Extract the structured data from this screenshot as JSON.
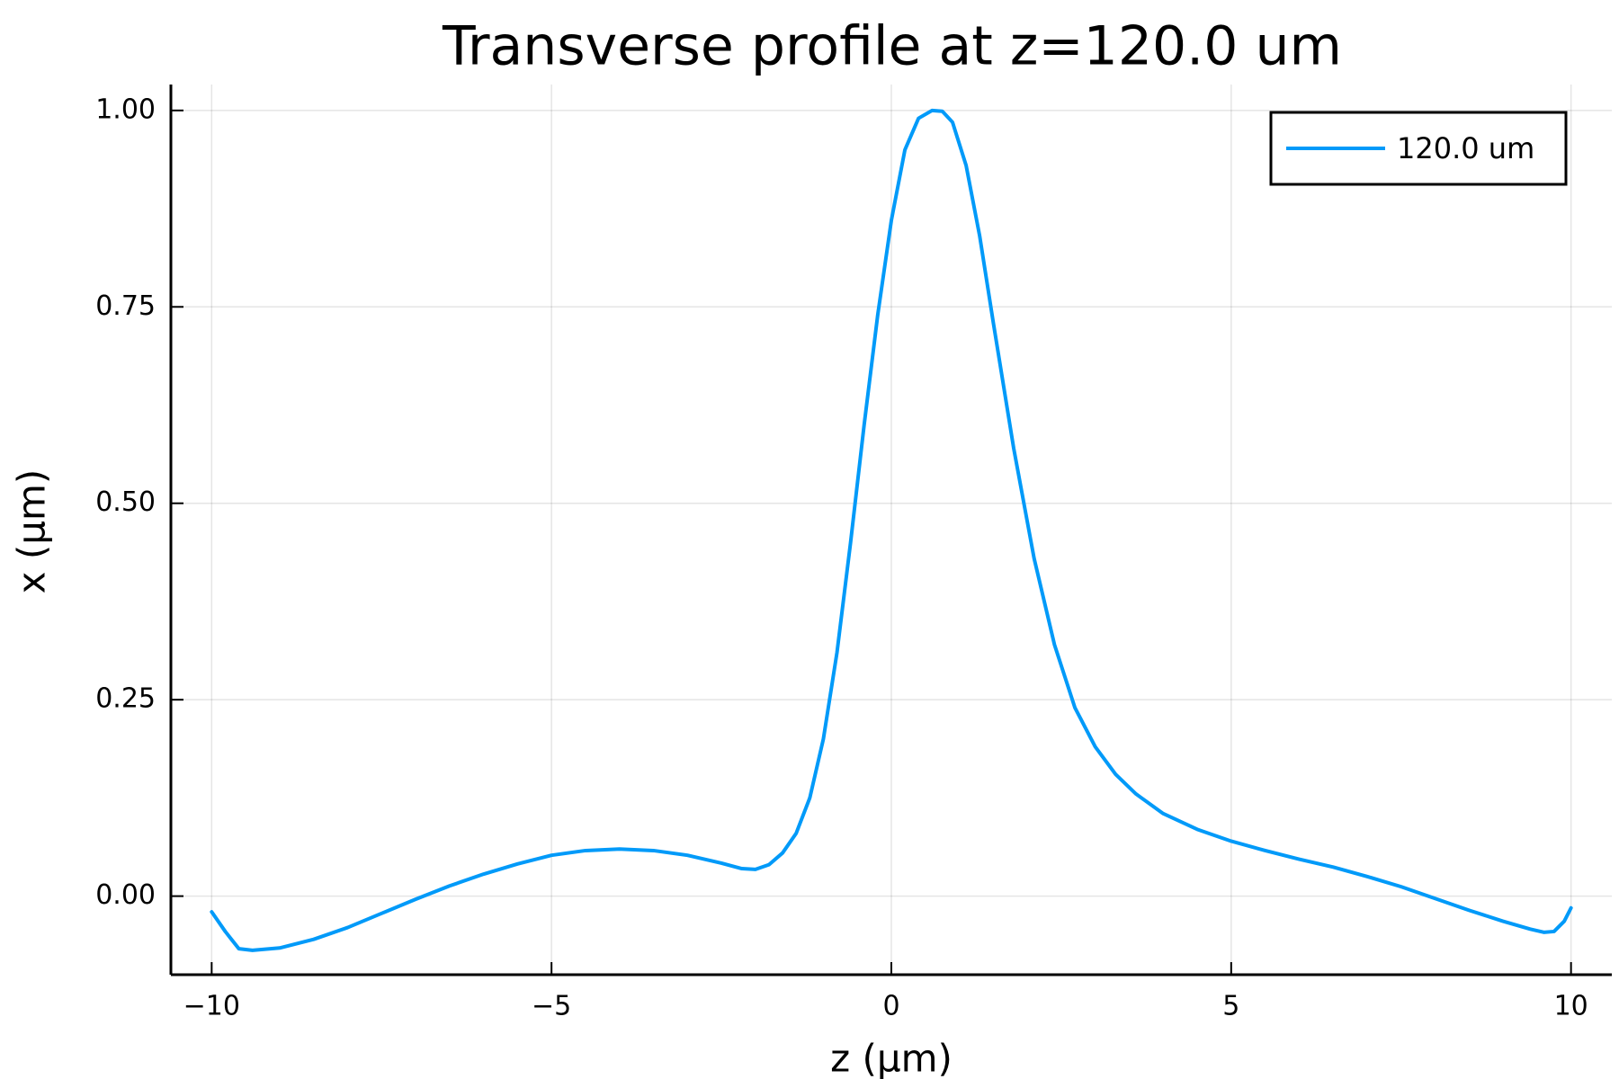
{
  "chart_data": {
    "type": "line",
    "title": "Transverse profile at z=120.0 um",
    "xlabel": "z (μm)",
    "ylabel": "x (μm)",
    "xlim": [
      -10.6,
      10.6
    ],
    "ylim": [
      -0.1,
      1.033
    ],
    "grid": true,
    "legend_position": "top-right",
    "x_ticks": [
      {
        "value": -10,
        "label": "−10"
      },
      {
        "value": -5,
        "label": "−5"
      },
      {
        "value": 0,
        "label": "0"
      },
      {
        "value": 5,
        "label": "5"
      },
      {
        "value": 10,
        "label": "10"
      }
    ],
    "y_ticks": [
      {
        "value": 0.0,
        "label": "0.00"
      },
      {
        "value": 0.25,
        "label": "0.25"
      },
      {
        "value": 0.5,
        "label": "0.50"
      },
      {
        "value": 0.75,
        "label": "0.75"
      },
      {
        "value": 1.0,
        "label": "1.00"
      }
    ],
    "series": [
      {
        "name": "120.0 um",
        "color": "#009af9",
        "x": [
          -10.0,
          -9.8,
          -9.6,
          -9.4,
          -9.0,
          -8.5,
          -8.0,
          -7.5,
          -7.0,
          -6.5,
          -6.0,
          -5.5,
          -5.0,
          -4.5,
          -4.0,
          -3.5,
          -3.0,
          -2.5,
          -2.2,
          -2.0,
          -1.8,
          -1.6,
          -1.4,
          -1.2,
          -1.0,
          -0.8,
          -0.6,
          -0.4,
          -0.2,
          0.0,
          0.2,
          0.4,
          0.6,
          0.75,
          0.9,
          1.1,
          1.3,
          1.5,
          1.8,
          2.1,
          2.4,
          2.7,
          3.0,
          3.3,
          3.6,
          4.0,
          4.5,
          5.0,
          5.5,
          6.0,
          6.5,
          7.0,
          7.5,
          8.0,
          8.5,
          9.0,
          9.4,
          9.6,
          9.75,
          9.9,
          10.0
        ],
        "values": [
          -0.02,
          -0.045,
          -0.067,
          -0.069,
          -0.066,
          -0.055,
          -0.04,
          -0.022,
          -0.004,
          0.013,
          0.028,
          0.041,
          0.052,
          0.058,
          0.06,
          0.058,
          0.052,
          0.042,
          0.035,
          0.034,
          0.04,
          0.055,
          0.08,
          0.125,
          0.2,
          0.31,
          0.45,
          0.6,
          0.74,
          0.86,
          0.95,
          0.99,
          1.0,
          0.999,
          0.985,
          0.93,
          0.84,
          0.73,
          0.57,
          0.43,
          0.32,
          0.24,
          0.19,
          0.155,
          0.13,
          0.105,
          0.085,
          0.07,
          0.058,
          0.047,
          0.037,
          0.025,
          0.012,
          -0.003,
          -0.018,
          -0.032,
          -0.042,
          -0.046,
          -0.045,
          -0.032,
          -0.015
        ]
      }
    ]
  }
}
